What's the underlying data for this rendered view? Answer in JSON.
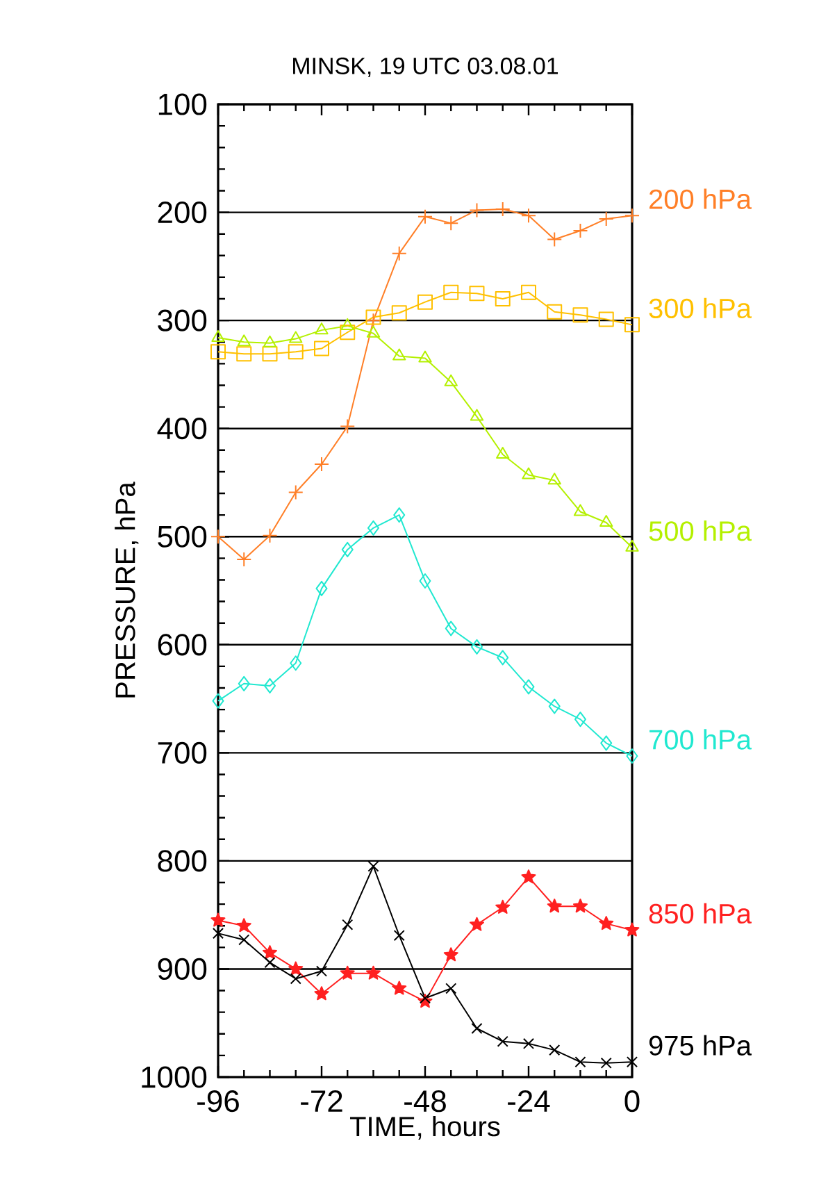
{
  "chart_data": {
    "type": "line",
    "title": "MINSK, 19 UTC 03.08.01",
    "xlabel": "TIME, hours",
    "ylabel": "PRESSURE, hPa",
    "x": [
      -96,
      -90,
      -84,
      -78,
      -72,
      -66,
      -60,
      -54,
      -48,
      -42,
      -36,
      -30,
      -24,
      -18,
      -12,
      -6,
      0
    ],
    "xlim": [
      -96,
      0
    ],
    "xticks": [
      -96,
      -72,
      -48,
      -24,
      0
    ],
    "ylim": [
      1000,
      100
    ],
    "yticks": [
      100,
      200,
      300,
      400,
      500,
      600,
      700,
      800,
      900,
      1000
    ],
    "grid": "y",
    "line_style": "solid",
    "legend": "right",
    "series": [
      {
        "name": "200 hPa",
        "color": "#ff7f27",
        "marker": "plus",
        "values": [
          500,
          521,
          499,
          459,
          433,
          398,
          300,
          238,
          204,
          210,
          198,
          197,
          203,
          225,
          217,
          206,
          203
        ]
      },
      {
        "name": "300 hPa",
        "color": "#ffc000",
        "marker": "square",
        "values": [
          329,
          331,
          331,
          329,
          326,
          311,
          297,
          293,
          283,
          274,
          275,
          280,
          274,
          292,
          295,
          299,
          304
        ]
      },
      {
        "name": "500 hPa",
        "color": "#b4f000",
        "marker": "triangle",
        "values": [
          316,
          320,
          321,
          317,
          309,
          305,
          312,
          333,
          335,
          357,
          389,
          424,
          443,
          448,
          477,
          487,
          510
        ]
      },
      {
        "name": "700 hPa",
        "color": "#20e8d0",
        "marker": "diamond",
        "values": [
          652,
          636,
          638,
          617,
          548,
          512,
          492,
          480,
          541,
          585,
          602,
          612,
          639,
          657,
          669,
          691,
          703
        ]
      },
      {
        "name": "850 hPa",
        "color": "#ff2020",
        "marker": "star",
        "values": [
          855,
          860,
          885,
          900,
          923,
          904,
          904,
          918,
          930,
          887,
          859,
          843,
          815,
          842,
          842,
          858,
          864
        ]
      },
      {
        "name": "975 hPa",
        "color": "#000000",
        "marker": "cross",
        "values": [
          867,
          873,
          894,
          909,
          902,
          859,
          805,
          869,
          927,
          918,
          955,
          967,
          969,
          975,
          986,
          987,
          986
        ]
      }
    ]
  }
}
